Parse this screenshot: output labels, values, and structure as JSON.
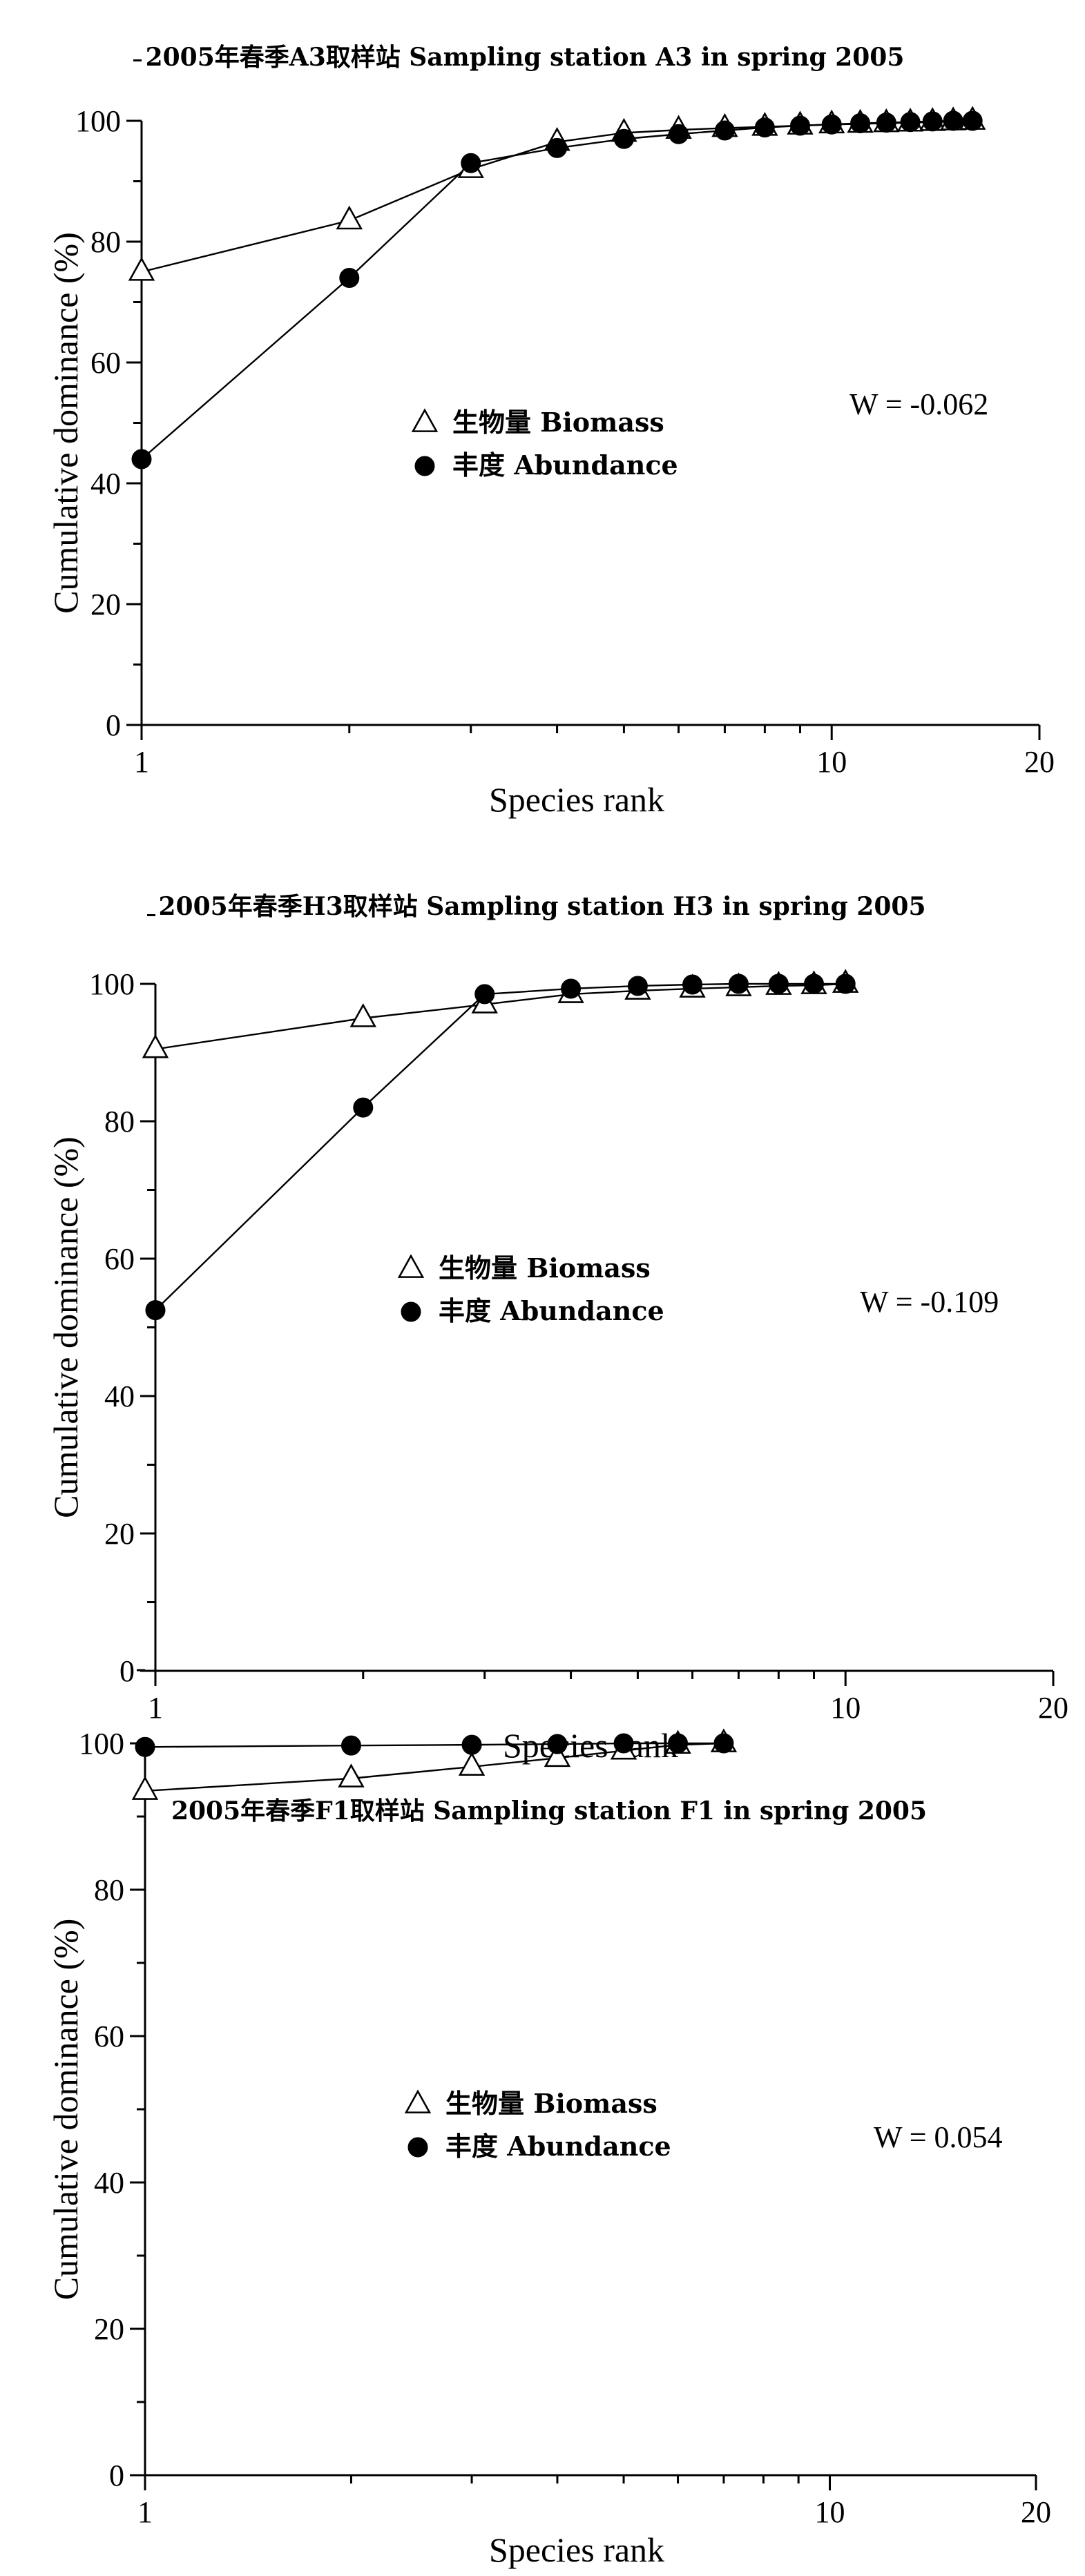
{
  "chart_data": [
    {
      "type": "line",
      "title": "2005年春季A3取样站 Sampling station A3 in spring 2005",
      "xlabel": "Species rank",
      "ylabel": "Cumulative dominance (%)",
      "x_scale": "log",
      "xlim": [
        1,
        20
      ],
      "ylim": [
        0,
        100
      ],
      "x_ticks": [
        1,
        10,
        20
      ],
      "y_ticks": [
        0,
        20,
        40,
        60,
        80,
        100
      ],
      "w_label": "W = -0.062",
      "legend_position": "center",
      "series": [
        {
          "name": "生物量 Biomass",
          "marker": "open-triangle",
          "x": [
            1,
            2,
            3,
            4,
            5,
            6,
            7,
            8,
            9,
            10,
            11,
            12,
            13,
            14,
            15,
            16
          ],
          "y": [
            75.0,
            83.5,
            92.0,
            96.5,
            98.0,
            98.5,
            98.8,
            99.0,
            99.2,
            99.4,
            99.5,
            99.6,
            99.7,
            99.8,
            99.9,
            100.0
          ]
        },
        {
          "name": "丰度 Abundance",
          "marker": "filled-circle",
          "x": [
            1,
            2,
            3,
            4,
            5,
            6,
            7,
            8,
            9,
            10,
            11,
            12,
            13,
            14,
            15,
            16
          ],
          "y": [
            44.0,
            74.0,
            93.0,
            95.5,
            97.0,
            97.8,
            98.4,
            98.9,
            99.2,
            99.4,
            99.6,
            99.7,
            99.8,
            99.9,
            100.0,
            100.0
          ]
        }
      ]
    },
    {
      "type": "line",
      "title": "2005年春季H3取样站 Sampling station H3 in spring 2005",
      "xlabel": "Species rank",
      "ylabel": "Cumulative dominance (%)",
      "x_scale": "log",
      "xlim": [
        1,
        20
      ],
      "ylim": [
        0,
        100
      ],
      "x_ticks": [
        1,
        10,
        20
      ],
      "y_ticks": [
        0,
        20,
        40,
        60,
        80,
        100
      ],
      "w_label": "W = -0.109",
      "legend_position": "center",
      "series": [
        {
          "name": "生物量 Biomass",
          "marker": "open-triangle",
          "x": [
            1,
            2,
            3,
            4,
            5,
            6,
            7,
            8,
            9,
            10
          ],
          "y": [
            90.5,
            95.0,
            97.0,
            98.5,
            99.0,
            99.3,
            99.5,
            99.7,
            99.8,
            100.0
          ]
        },
        {
          "name": "丰度 Abundance",
          "marker": "filled-circle",
          "x": [
            1,
            2,
            3,
            4,
            5,
            6,
            7,
            8,
            9,
            10
          ],
          "y": [
            52.5,
            82.0,
            98.5,
            99.3,
            99.7,
            99.9,
            100.0,
            100.0,
            100.0,
            100.0
          ]
        }
      ]
    },
    {
      "type": "line",
      "title": "2005年春季F1取样站 Sampling station F1 in spring 2005",
      "xlabel": "Species rank",
      "ylabel": "Cumulative dominance (%)",
      "x_scale": "log",
      "xlim": [
        1,
        20
      ],
      "ylim": [
        0,
        100
      ],
      "x_ticks": [
        1,
        10,
        20
      ],
      "y_ticks": [
        0,
        20,
        40,
        60,
        80,
        100
      ],
      "w_label": "W = 0.054",
      "legend_position": "center",
      "series": [
        {
          "name": "生物量 Biomass",
          "marker": "open-triangle",
          "x": [
            1,
            2,
            3,
            4,
            5,
            6,
            7
          ],
          "y": [
            93.5,
            95.2,
            96.8,
            98.0,
            99.0,
            99.8,
            100.0
          ]
        },
        {
          "name": "丰度 Abundance",
          "marker": "filled-circle",
          "x": [
            1,
            2,
            3,
            4,
            5,
            6,
            7
          ],
          "y": [
            99.5,
            99.7,
            99.8,
            99.9,
            100.0,
            100.0,
            100.0
          ]
        }
      ]
    }
  ]
}
